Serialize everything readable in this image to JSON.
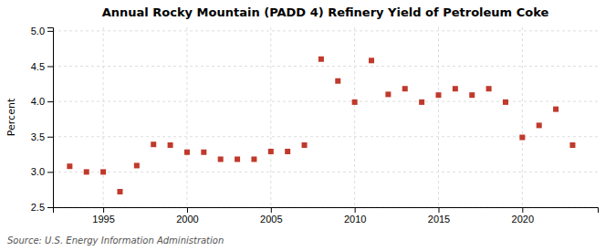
{
  "chart_data": {
    "type": "scatter",
    "title": "Annual Rocky Mountain (PADD 4) Refinery Yield of Petroleum Coke",
    "ylabel": "Percent",
    "source": "Source: U.S. Energy Information Administration",
    "x": [
      1993,
      1994,
      1995,
      1996,
      1997,
      1998,
      1999,
      2000,
      2001,
      2002,
      2003,
      2004,
      2005,
      2006,
      2007,
      2008,
      2009,
      2010,
      2011,
      2012,
      2013,
      2014,
      2015,
      2016,
      2017,
      2018,
      2019,
      2020,
      2021,
      2022,
      2023
    ],
    "values": [
      3.08,
      3.0,
      3.0,
      2.72,
      3.09,
      3.39,
      3.38,
      3.28,
      3.28,
      3.18,
      3.18,
      3.18,
      3.29,
      3.29,
      3.38,
      4.6,
      4.29,
      3.99,
      4.58,
      4.1,
      4.18,
      3.99,
      4.09,
      4.18,
      4.09,
      4.18,
      3.99,
      3.49,
      3.66,
      3.89,
      3.38
    ],
    "color": "#c0392b",
    "marker": "square",
    "xlim": [
      1992.0,
      2024.5
    ],
    "ylim": [
      2.5,
      5.05
    ],
    "xticks": [
      1995,
      2000,
      2005,
      2010,
      2015,
      2020
    ],
    "yticks": [
      2.5,
      {
        "value": 3.0,
        "label": "3.0"
      },
      3.5,
      {
        "value": 4.0,
        "label": "4.0"
      },
      4.5,
      {
        "value": 5.0,
        "label": "5.0"
      }
    ],
    "grid": true
  }
}
